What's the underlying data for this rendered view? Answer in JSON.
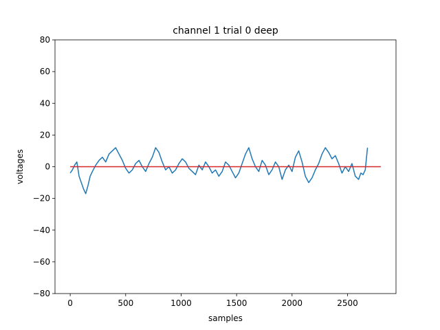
{
  "chart_data": {
    "type": "line",
    "title": "channel 1 trial 0 deep",
    "xlabel": "samples",
    "ylabel": "voltages",
    "xlim": [
      -137,
      2937
    ],
    "ylim": [
      -80,
      80
    ],
    "xticks": [
      0,
      500,
      1000,
      1500,
      2000,
      2500
    ],
    "yticks": [
      -80,
      -60,
      -40,
      -20,
      0,
      20,
      40,
      60,
      80
    ],
    "grid": false,
    "colors": {
      "signal": "#1f77b4",
      "baseline": "#d62728"
    },
    "series": [
      {
        "style": "signal",
        "x": [
          0,
          20,
          40,
          60,
          80,
          100,
          120,
          140,
          160,
          180,
          200,
          230,
          260,
          290,
          320,
          350,
          380,
          410,
          440,
          470,
          500,
          530,
          560,
          590,
          620,
          650,
          680,
          710,
          740,
          770,
          800,
          830,
          860,
          890,
          920,
          950,
          980,
          1010,
          1040,
          1070,
          1100,
          1130,
          1160,
          1190,
          1220,
          1250,
          1280,
          1310,
          1340,
          1370,
          1400,
          1430,
          1460,
          1490,
          1520,
          1550,
          1580,
          1610,
          1640,
          1670,
          1700,
          1730,
          1760,
          1790,
          1820,
          1850,
          1880,
          1910,
          1940,
          1970,
          2000,
          2030,
          2060,
          2090,
          2120,
          2150,
          2180,
          2210,
          2240,
          2270,
          2300,
          2330,
          2360,
          2390,
          2420,
          2450,
          2480,
          2510,
          2540,
          2570,
          2600,
          2620,
          2640,
          2660,
          2680
        ],
        "y": [
          -4,
          -2,
          1,
          3,
          -6,
          -10,
          -14,
          -17,
          -12,
          -6,
          -3,
          1,
          4,
          6,
          3,
          8,
          10,
          12,
          8,
          4,
          -1,
          -4,
          -2,
          2,
          4,
          0,
          -3,
          2,
          6,
          12,
          9,
          3,
          -2,
          0,
          -4,
          -2,
          2,
          5,
          3,
          -1,
          -3,
          -5,
          1,
          -2,
          3,
          0,
          -4,
          -2,
          -6,
          -3,
          3,
          1,
          -3,
          -7,
          -4,
          2,
          8,
          12,
          5,
          0,
          -3,
          4,
          1,
          -5,
          -2,
          3,
          0,
          -8,
          -2,
          1,
          -3,
          6,
          10,
          3,
          -6,
          -10,
          -7,
          -2,
          2,
          8,
          12,
          9,
          5,
          7,
          2,
          -4,
          0,
          -3,
          2,
          -6,
          -8,
          -4,
          -5,
          -2,
          12
        ]
      },
      {
        "style": "baseline",
        "x": [
          0,
          2800
        ],
        "y": [
          0,
          0
        ]
      }
    ]
  }
}
